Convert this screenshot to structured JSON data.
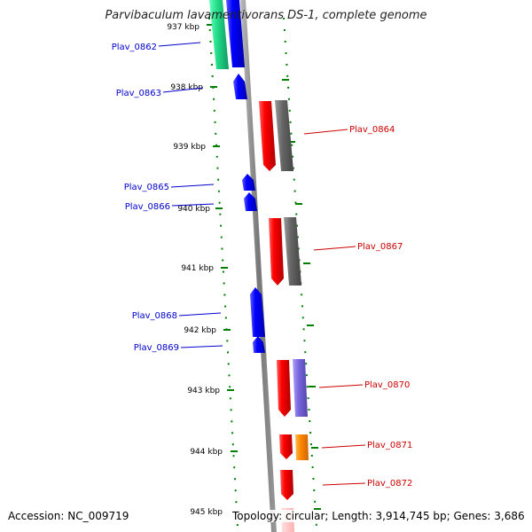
{
  "title": "Parvibaculum lavamentivorans DS-1, complete genome",
  "footer": {
    "accession": "Accession: NC_009719",
    "topology": "Topology: circular; Length: 3,914,745 bp; Genes: 3,686"
  },
  "colors": {
    "forward_gene": "#0000ff",
    "reverse_gene": "#ff0000",
    "cds_track": "#666666",
    "backbone": "#888888",
    "tick": "#008000",
    "forward_label": "#0000cc",
    "reverse_label": "#cc0000"
  },
  "ticks": [
    {
      "label": "937 kbp"
    },
    {
      "label": "938 kbp"
    },
    {
      "label": "939 kbp"
    },
    {
      "label": "940 kbp"
    },
    {
      "label": "941 kbp"
    },
    {
      "label": "942 kbp"
    },
    {
      "label": "943 kbp"
    },
    {
      "label": "944 kbp"
    },
    {
      "label": "945 kbp"
    }
  ],
  "genes": [
    {
      "name": "Plav_0862",
      "strand": "forward"
    },
    {
      "name": "Plav_0863",
      "strand": "forward"
    },
    {
      "name": "Plav_0864",
      "strand": "reverse"
    },
    {
      "name": "Plav_0865",
      "strand": "forward"
    },
    {
      "name": "Plav_0866",
      "strand": "forward"
    },
    {
      "name": "Plav_0867",
      "strand": "reverse"
    },
    {
      "name": "Plav_0868",
      "strand": "forward"
    },
    {
      "name": "Plav_0869",
      "strand": "forward"
    },
    {
      "name": "Plav_0870",
      "strand": "reverse"
    },
    {
      "name": "Plav_0871",
      "strand": "reverse"
    },
    {
      "name": "Plav_0872",
      "strand": "reverse"
    }
  ]
}
